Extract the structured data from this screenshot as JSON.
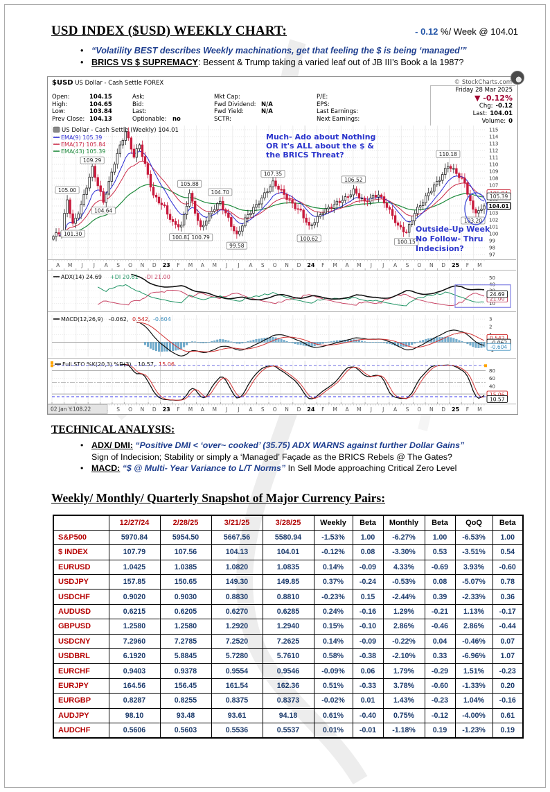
{
  "page": {
    "title": "USD INDEX ($USD) WEEKLY CHART:",
    "change_value": "- 0.12",
    "change_rest": " %/ Week @ 104.01",
    "bullet1": "“Volatility BEST describes Weekly machinations, get that feeling the $ is being ‘managed’”",
    "bullet2_lead": "BRICS VS $ SUPREMACY",
    "bullet2_text": ": Bessent & Trump taking a varied leaf out of JB III’s Book a la 1987?"
  },
  "stockchart": {
    "symbol": "$USD",
    "security": " US Dollar - Cash Settle FOREX",
    "source": "© StockCharts.com",
    "date": "Friday 28 Mar 2025",
    "change_pct": "▼ -0.12%",
    "quote_columns": [
      [
        [
          "Open:",
          "104.15"
        ],
        [
          "High:",
          "104.65"
        ],
        [
          "Low:",
          "103.84"
        ],
        [
          "Prev Close:",
          "104.13"
        ]
      ],
      [
        [
          "Ask:",
          ""
        ],
        [
          "Bid:",
          ""
        ],
        [
          "Last:",
          ""
        ],
        [
          "Optionable:",
          "no"
        ]
      ],
      [
        [
          "Mkt Cap:",
          ""
        ],
        [
          "Fwd Dividend:",
          "N/A"
        ],
        [
          "Fwd Yield:",
          "N/A"
        ],
        [
          "SCTR:",
          ""
        ]
      ],
      [
        [
          "P/E:",
          ""
        ],
        [
          "EPS:",
          ""
        ],
        [
          "Last Earnings:",
          ""
        ],
        [
          "Next Earnings:",
          ""
        ]
      ]
    ],
    "right_fields": [
      [
        "Chg:",
        "-0.12"
      ],
      [
        "Last:",
        "104.01"
      ],
      [
        "Volume:",
        "0"
      ]
    ]
  },
  "chart_data": {
    "type": "candlestick",
    "title": "US Dollar - Cash Settle (Weekly) 104.01",
    "timeframe": "Weekly, Apr 2022 - Mar 2025",
    "y_axis": {
      "min": 97,
      "max": 115,
      "step": 1
    },
    "weeks": 156,
    "x_month_labels": [
      "A",
      "M",
      "J",
      "J",
      "A",
      "S",
      "O",
      "N",
      "D",
      "23",
      "F",
      "M",
      "A",
      "M",
      "J",
      "J",
      "A",
      "S",
      "O",
      "N",
      "D",
      "24",
      "F",
      "M",
      "A",
      "M",
      "J",
      "J",
      "A",
      "S",
      "O",
      "N",
      "D",
      "25",
      "F",
      "M"
    ],
    "close_anchors": [
      [
        0,
        99.6
      ],
      [
        3,
        100.2
      ],
      [
        5,
        104.9
      ],
      [
        7,
        101.4
      ],
      [
        10,
        104.2
      ],
      [
        14,
        109.3
      ],
      [
        18,
        104.7
      ],
      [
        22,
        110.3
      ],
      [
        26,
        114.6
      ],
      [
        29,
        111.3
      ],
      [
        31,
        113.0
      ],
      [
        36,
        105.3
      ],
      [
        40,
        103.9
      ],
      [
        43,
        101.6
      ],
      [
        46,
        100.9
      ],
      [
        49,
        105.7
      ],
      [
        53,
        100.9
      ],
      [
        57,
        103.1
      ],
      [
        60,
        104.5
      ],
      [
        63,
        102.3
      ],
      [
        66,
        99.7
      ],
      [
        70,
        102.6
      ],
      [
        76,
        105.8
      ],
      [
        79,
        107.2
      ],
      [
        84,
        105.3
      ],
      [
        89,
        103.1
      ],
      [
        92,
        100.8
      ],
      [
        97,
        103.4
      ],
      [
        101,
        104.0
      ],
      [
        105,
        105.1
      ],
      [
        108,
        106.4
      ],
      [
        112,
        104.4
      ],
      [
        117,
        105.8
      ],
      [
        120,
        104.1
      ],
      [
        124,
        100.9
      ],
      [
        127,
        100.2
      ],
      [
        130,
        103.2
      ],
      [
        134,
        105.1
      ],
      [
        138,
        107.4
      ],
      [
        142,
        110.0
      ],
      [
        145,
        108.6
      ],
      [
        148,
        107.2
      ],
      [
        151,
        103.5
      ],
      [
        153,
        103.3
      ],
      [
        155,
        104.01
      ]
    ],
    "labeled_points": [
      [
        5,
        105.0,
        "105.00",
        "a"
      ],
      [
        7,
        101.3,
        "101.30",
        "b"
      ],
      [
        14,
        109.29,
        "109.29",
        "a"
      ],
      [
        18,
        104.64,
        "104.64",
        "b"
      ],
      [
        46,
        100.82,
        "100.82",
        "b"
      ],
      [
        49,
        105.88,
        "105.88",
        "a"
      ],
      [
        53,
        100.79,
        "100.79",
        "b"
      ],
      [
        60,
        104.7,
        "104.70",
        "a"
      ],
      [
        66,
        99.58,
        "99.58",
        "b"
      ],
      [
        79,
        107.35,
        "107.35",
        "a"
      ],
      [
        92,
        100.62,
        "100.62",
        "b"
      ],
      [
        108,
        106.52,
        "106.52",
        "a"
      ],
      [
        127,
        100.15,
        "100.15",
        "b"
      ],
      [
        142,
        110.18,
        "110.18",
        "a"
      ],
      [
        151,
        103.2,
        "103.20",
        "b"
      ]
    ],
    "overlays": [
      {
        "name": "EMA(9)",
        "value": "105.39",
        "color": "#2A2AD4"
      },
      {
        "name": "EMA(17)",
        "value": "105.84",
        "color": "#CC2B48"
      },
      {
        "name": "EMA(43)",
        "value": "105.39",
        "color": "#1E8A3C"
      }
    ],
    "right_axis_boxes": [
      [
        "105.84",
        "#CC3344",
        105.84
      ],
      [
        "105.39",
        "#333333",
        105.39
      ],
      [
        "104.01",
        "#000000",
        104.01
      ]
    ],
    "annotations": {
      "note1": [
        "Much- Ado about Nothing",
        "OR it's ALL about the $ &",
        "the BRICS Threat?"
      ],
      "note2": [
        "Outside-Up Week",
        "No Follow- Thru",
        "Indecision?"
      ]
    },
    "indicators": {
      "adx": {
        "name": "ADX(14) 24.69",
        "di_plus": "+DI 20.61",
        "di_minus": "-DI 21.00",
        "axis": [
          10,
          20,
          30,
          40,
          50
        ],
        "boxes": [
          [
            "21.00",
            "#C23B5A",
            21.0
          ],
          [
            "24.69",
            "#111111",
            24.69
          ]
        ]
      },
      "macd": {
        "name": "MACD(12,26,9)",
        "v_line": "-0.062,",
        "v_signal": "0.542,",
        "v_hist": "-0.604",
        "axis": [
          3,
          2,
          1,
          -1
        ],
        "boxes": [
          [
            "0.542",
            "#CC2222",
            0.542
          ],
          [
            "-0.062",
            "#111111",
            -0.062
          ],
          [
            "-0.604",
            "#3E8FBE",
            -0.604
          ]
        ]
      },
      "sto": {
        "name": "Full STO %K(20,3) %D(3)",
        "v_k": "10.57,",
        "v_d": "15.06",
        "axis": [
          20,
          40,
          60,
          80
        ],
        "boxes": [
          [
            "15.06",
            "#CC2222",
            15.06
          ],
          [
            "10.57",
            "#111111",
            10.57
          ]
        ]
      }
    },
    "footer_left": "02 Jan Y:108.22"
  },
  "technical": {
    "heading": "TECHNICAL ANALYSIS:",
    "items": [
      {
        "lead": "ADX/ DMI:",
        "quote": " “Positive DMI < ‘over~ cooked’ (35.75) ADX WARNS against further Dollar Gains”",
        "rest": "Sign of Indecision; Stability or simply a ‘Managed’ Façade as the BRICS Rebels @ The Gates?"
      },
      {
        "lead": "MACD:",
        "quote": " “$ @ Multi- Year Variance to L/T Norms”",
        "rest": "  In Sell Mode approaching Critical Zero Level"
      }
    ]
  },
  "snapshot": {
    "heading": "Weekly/ Monthly/ Quarterly Snapshot of Major Currency Pairs:",
    "columns": [
      "",
      "12/27/24",
      "2/28/25",
      "3/21/25",
      "3/28/25",
      "Weekly",
      "Beta",
      "Monthly",
      "Beta",
      "QoQ",
      "Beta"
    ],
    "rows": [
      [
        "S&P500",
        "5970.84",
        "5954.50",
        "5667.56",
        "5580.94",
        "-1.53%",
        "1.00",
        "-6.27%",
        "1.00",
        "-6.53%",
        "1.00"
      ],
      [
        "$ INDEX",
        "107.79",
        "107.56",
        "104.13",
        "104.01",
        "-0.12%",
        "0.08",
        "-3.30%",
        "0.53",
        "-3.51%",
        "0.54"
      ],
      [
        "EURUSD",
        "1.0425",
        "1.0385",
        "1.0820",
        "1.0835",
        "0.14%",
        "-0.09",
        "4.33%",
        "-0.69",
        "3.93%",
        "-0.60"
      ],
      [
        "USDJPY",
        "157.85",
        "150.65",
        "149.30",
        "149.85",
        "0.37%",
        "-0.24",
        "-0.53%",
        "0.08",
        "-5.07%",
        "0.78"
      ],
      [
        "USDCHF",
        "0.9020",
        "0.9030",
        "0.8830",
        "0.8810",
        "-0.23%",
        "0.15",
        "-2.44%",
        "0.39",
        "-2.33%",
        "0.36"
      ],
      [
        "AUDUSD",
        "0.6215",
        "0.6205",
        "0.6270",
        "0.6285",
        "0.24%",
        "-0.16",
        "1.29%",
        "-0.21",
        "1.13%",
        "-0.17"
      ],
      [
        "GBPUSD",
        "1.2580",
        "1.2580",
        "1.2920",
        "1.2940",
        "0.15%",
        "-0.10",
        "2.86%",
        "-0.46",
        "2.86%",
        "-0.44"
      ],
      [
        "USDCNY",
        "7.2960",
        "7.2785",
        "7.2520",
        "7.2625",
        "0.14%",
        "-0.09",
        "-0.22%",
        "0.04",
        "-0.46%",
        "0.07"
      ],
      [
        "USDBRL",
        "6.1920",
        "5.8845",
        "5.7280",
        "5.7610",
        "0.58%",
        "-0.38",
        "-2.10%",
        "0.33",
        "-6.96%",
        "1.07"
      ],
      [
        "EURCHF",
        "0.9403",
        "0.9378",
        "0.9554",
        "0.9546",
        "-0.09%",
        "0.06",
        "1.79%",
        "-0.29",
        "1.51%",
        "-0.23"
      ],
      [
        "EURJPY",
        "164.56",
        "156.45",
        "161.54",
        "162.36",
        "0.51%",
        "-0.33",
        "3.78%",
        "-0.60",
        "-1.33%",
        "0.20"
      ],
      [
        "EURGBP",
        "0.8287",
        "0.8255",
        "0.8375",
        "0.8373",
        "-0.02%",
        "0.01",
        "1.43%",
        "-0.23",
        "1.04%",
        "-0.16"
      ],
      [
        "AUDJPY",
        "98.10",
        "93.48",
        "93.61",
        "94.18",
        "0.61%",
        "-0.40",
        "0.75%",
        "-0.12",
        "-4.00%",
        "0.61"
      ],
      [
        "AUDCHF",
        "0.5606",
        "0.5603",
        "0.5536",
        "0.5537",
        "0.01%",
        "-0.01",
        "-1.18%",
        "0.19",
        "-1.23%",
        "0.19"
      ]
    ]
  }
}
